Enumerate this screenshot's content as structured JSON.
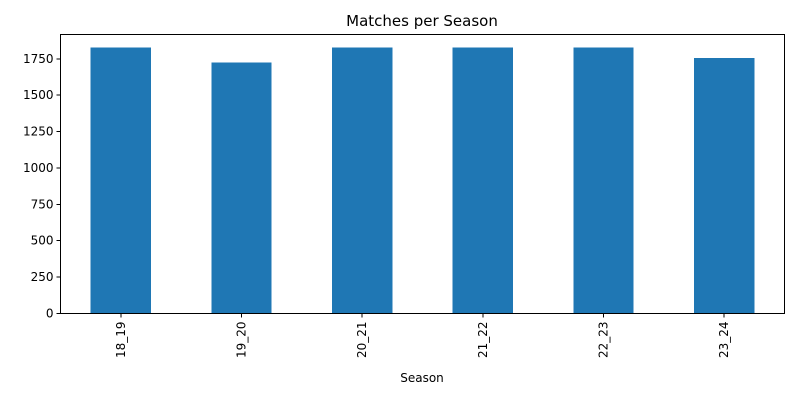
{
  "chart_data": {
    "type": "bar",
    "title": "Matches per Season",
    "xlabel": "Season",
    "ylabel": "",
    "categories": [
      "18_19",
      "19_20",
      "20_21",
      "21_22",
      "22_23",
      "23_24"
    ],
    "values": [
      1826,
      1725,
      1826,
      1826,
      1826,
      1755
    ],
    "ylim": [
      0,
      1917
    ],
    "yticks": [
      0,
      250,
      500,
      750,
      1000,
      1250,
      1500,
      1750
    ],
    "bar_color": "#1f77b4",
    "grid": false,
    "legend": "none",
    "x_tick_rotation": "vertical"
  }
}
